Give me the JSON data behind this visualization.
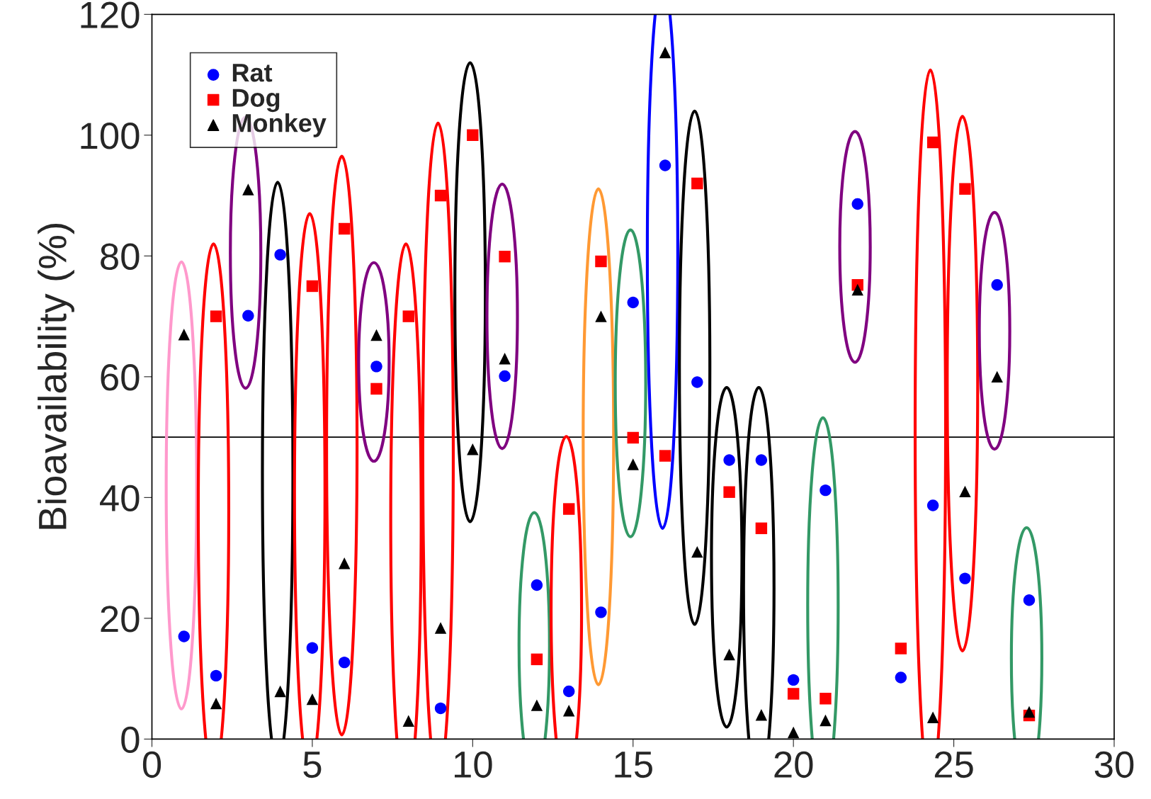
{
  "chart_data": {
    "type": "scatter",
    "ylabel": "Bioavailability (%)",
    "xlim": [
      0,
      30
    ],
    "xticks": [
      0,
      5,
      10,
      15,
      20,
      25,
      30
    ],
    "ylim": [
      0,
      120
    ],
    "yticks": [
      0,
      20,
      40,
      60,
      80,
      100,
      120
    ],
    "grid": false,
    "legend": "top left",
    "series": [
      {
        "name": "Rat",
        "color": "#0000ff",
        "marker": "circle",
        "x": [
          1,
          2,
          3,
          4,
          5,
          6,
          7,
          9,
          11,
          12,
          13,
          14,
          15,
          16,
          17,
          18,
          19,
          20,
          21,
          22,
          23.35,
          24.35,
          25.35,
          26.35,
          27.35
        ],
        "values": [
          17.0,
          10.5,
          70.1,
          80.2,
          15.1,
          12.7,
          61.7,
          5.1,
          60.1,
          25.5,
          7.9,
          21.0,
          72.3,
          95.0,
          59.1,
          46.2,
          46.2,
          9.8,
          41.2,
          88.6,
          10.2,
          38.7,
          26.6,
          75.2,
          23.0
        ]
      },
      {
        "name": "Dog",
        "color": "#ff0000",
        "marker": "square",
        "x": [
          2,
          5,
          6,
          7,
          8,
          9,
          10,
          11,
          12,
          13,
          14,
          15,
          16,
          17,
          18,
          19,
          20,
          21,
          22,
          23.35,
          24.35,
          25.35,
          27.35
        ],
        "values": [
          70.0,
          75.0,
          84.5,
          58.0,
          70.0,
          90.0,
          100.0,
          79.9,
          13.2,
          38.1,
          79.1,
          49.9,
          46.9,
          92.0,
          40.9,
          34.9,
          7.5,
          6.7,
          75.2,
          15.0,
          98.8,
          91.1,
          3.9
        ]
      },
      {
        "name": "Monkey",
        "color": "#000000",
        "marker": "triangle",
        "x": [
          1,
          2,
          3,
          4,
          5,
          6,
          7,
          8,
          9,
          10,
          11,
          12,
          13,
          14,
          15,
          16,
          17,
          18,
          19,
          20,
          21,
          22,
          24.35,
          25.35,
          26.35,
          27.35
        ],
        "values": [
          67.0,
          5.9,
          91.0,
          7.9,
          6.6,
          29.1,
          66.9,
          3.0,
          18.4,
          48.0,
          63.0,
          5.6,
          4.7,
          70.0,
          45.5,
          113.7,
          31.0,
          14.0,
          4.0,
          1.1,
          3.1,
          74.4,
          3.6,
          41.0,
          60.0,
          4.5
        ]
      }
    ],
    "ref_lines": [
      {
        "axis": "y",
        "value": 50,
        "color": "#000000",
        "line_style": "solid"
      }
    ],
    "colors": [
      "#ff99cc",
      "#ff0000",
      "#800080",
      "#000000",
      "#ff0000",
      "#ff0000",
      "#800080",
      "#ff0000",
      "#ff0000",
      "#000000",
      "#800080",
      "#339966",
      "#ff0000",
      "#ff9933",
      "#339966",
      "#0000ff",
      "#000000",
      "#000000",
      "#000000",
      null,
      "#339966",
      "#800080",
      null,
      "#ff0000",
      "#ff0000",
      "#800080",
      "#339966"
    ]
  }
}
